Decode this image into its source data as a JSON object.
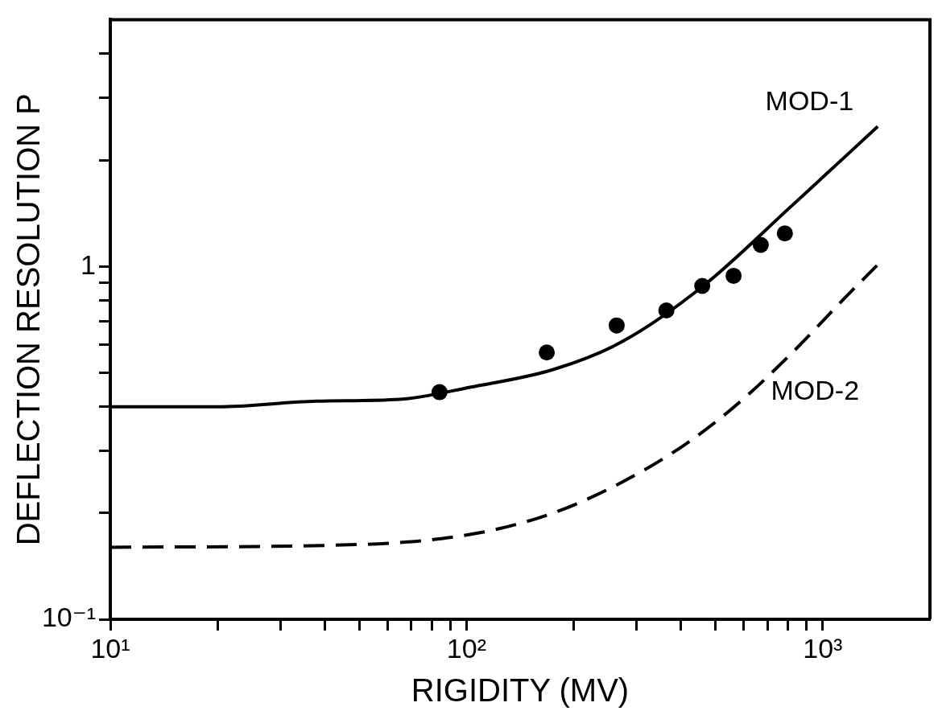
{
  "chart_data": {
    "type": "line",
    "xlabel": "RIGIDITY (MV)",
    "ylabel": "DEFLECTION RESOLUTION P",
    "log": "xy",
    "xlim": [
      10,
      2000
    ],
    "ylim": [
      0.1,
      5
    ],
    "xticks": [
      {
        "value": 10,
        "label": "10¹"
      },
      {
        "value": 20,
        "label": null
      },
      {
        "value": 30,
        "label": null
      },
      {
        "value": 40,
        "label": null
      },
      {
        "value": 50,
        "label": null
      },
      {
        "value": 60,
        "label": null
      },
      {
        "value": 70,
        "label": null
      },
      {
        "value": 80,
        "label": null
      },
      {
        "value": 90,
        "label": null
      },
      {
        "value": 100,
        "label": "10²"
      },
      {
        "value": 200,
        "label": null
      },
      {
        "value": 300,
        "label": null
      },
      {
        "value": 400,
        "label": null
      },
      {
        "value": 500,
        "label": null
      },
      {
        "value": 600,
        "label": null
      },
      {
        "value": 700,
        "label": null
      },
      {
        "value": 800,
        "label": null
      },
      {
        "value": 900,
        "label": null
      },
      {
        "value": 1000,
        "label": "10³"
      }
    ],
    "yticks": [
      {
        "value": 0.1,
        "label": "10⁻¹"
      },
      {
        "value": 0.2,
        "label": null
      },
      {
        "value": 0.3,
        "label": null
      },
      {
        "value": 0.4,
        "label": null
      },
      {
        "value": 0.5,
        "label": null
      },
      {
        "value": 0.6,
        "label": null
      },
      {
        "value": 0.7,
        "label": null
      },
      {
        "value": 0.8,
        "label": null
      },
      {
        "value": 0.9,
        "label": null
      },
      {
        "value": 1,
        "label": "1"
      },
      {
        "value": 2,
        "label": null
      },
      {
        "value": 3,
        "label": null
      },
      {
        "value": 4,
        "label": null
      }
    ],
    "grid": false,
    "legend": false,
    "series": [
      {
        "type": "scatter",
        "color": "#000000",
        "marker": "circle",
        "x": [
          84,
          168,
          264,
          364,
          459,
          562,
          670,
          783
        ],
        "values": [
          0.44,
          0.57,
          0.68,
          0.75,
          0.88,
          0.94,
          1.15,
          1.24
        ]
      },
      {
        "name": "MOD-1",
        "color": "#000000",
        "line_style": "solid",
        "marker": "none",
        "x": [
          10,
          20,
          38,
          65,
          103,
          175,
          272,
          462,
          822,
          1427
        ],
        "values": [
          0.4,
          0.4,
          0.415,
          0.42,
          0.455,
          0.51,
          0.61,
          0.88,
          1.49,
          2.49
        ]
      },
      {
        "name": "MOD-2",
        "color": "#000000",
        "line_style": "dashed",
        "marker": "none",
        "x": [
          10,
          51,
          106,
          175,
          272,
          411,
          581,
          822,
          1135,
          1440
        ],
        "values": [
          0.16,
          0.163,
          0.175,
          0.2,
          0.244,
          0.313,
          0.41,
          0.57,
          0.8,
          1.02
        ]
      }
    ]
  }
}
